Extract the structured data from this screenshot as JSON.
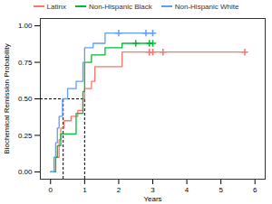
{
  "chart_data": {
    "type": "step",
    "x_label": "Years",
    "y_label": "Biochemical Remission Probability",
    "xlim": [
      -0.3,
      6.3
    ],
    "xticks": [
      0,
      1,
      2,
      3,
      4,
      5,
      6
    ],
    "ylim": [
      -0.05,
      1.05
    ],
    "yticks": [
      {
        "value": 0,
        "label": "0.00"
      },
      {
        "value": 0.25,
        "label": "0.25"
      },
      {
        "value": 0.5,
        "label": "0.50"
      },
      {
        "value": 0.75,
        "label": "0.75"
      },
      {
        "value": 1,
        "label": "1.00"
      }
    ],
    "grid": false,
    "legend": "top",
    "marker": "plus",
    "median_level": 0.5,
    "median_times": [
      0.37,
      1.0
    ],
    "series": [
      {
        "name": "Latinx",
        "color": "#F8766D",
        "x": [
          0,
          0.15,
          0.25,
          0.3,
          0.4,
          0.6,
          0.8,
          0.95,
          1.0,
          1.2,
          1.3,
          2.1,
          5.7
        ],
        "values": [
          0,
          0.1,
          0.22,
          0.3,
          0.35,
          0.38,
          0.42,
          0.5,
          0.57,
          0.62,
          0.72,
          0.82,
          0.82
        ],
        "censored_x": [
          2.9,
          3.0,
          3.3,
          5.7
        ]
      },
      {
        "name": "Non-Hispanic Black",
        "color": "#00BA38",
        "x": [
          0,
          0.15,
          0.2,
          0.3,
          0.75,
          0.95,
          1.0,
          1.2,
          1.6,
          2.1,
          3.0
        ],
        "values": [
          0,
          0.1,
          0.18,
          0.26,
          0.4,
          0.55,
          0.75,
          0.8,
          0.85,
          0.88,
          0.88
        ],
        "censored_x": [
          2.5,
          2.9,
          3.0
        ]
      },
      {
        "name": "Non-Hispanic White",
        "color": "#619CFF",
        "x": [
          0,
          0.1,
          0.15,
          0.2,
          0.25,
          0.35,
          0.5,
          0.75,
          0.95,
          1.0,
          1.25,
          1.6,
          3.0
        ],
        "values": [
          0,
          0.1,
          0.2,
          0.3,
          0.38,
          0.5,
          0.57,
          0.62,
          0.75,
          0.85,
          0.88,
          0.95,
          0.95
        ],
        "censored_x": [
          2.0,
          2.8,
          3.0
        ]
      }
    ]
  }
}
